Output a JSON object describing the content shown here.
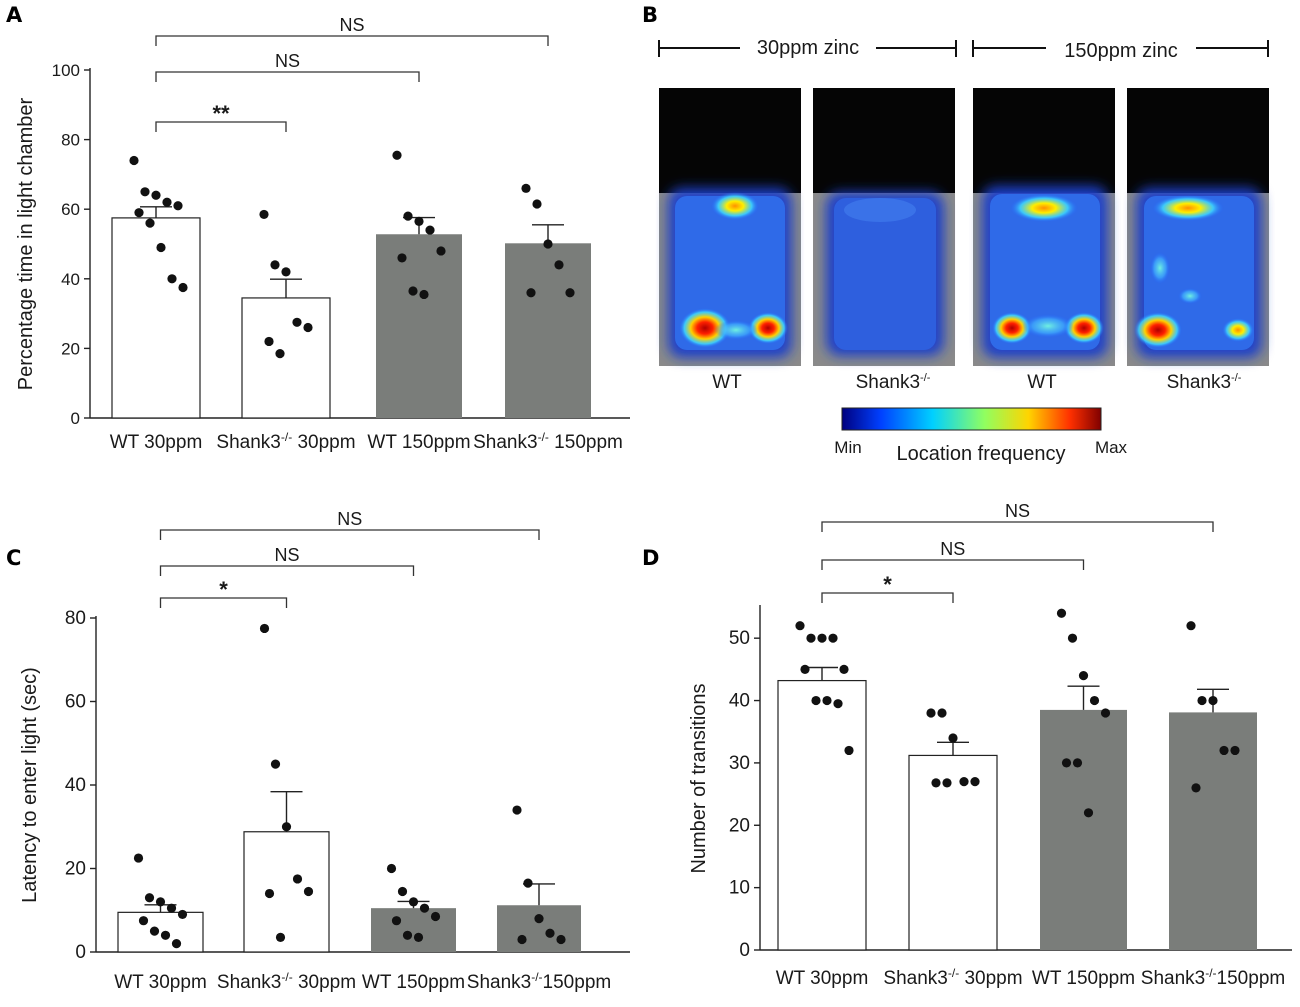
{
  "panel_letters": {
    "a": "A",
    "b": "B",
    "c": "C",
    "d": "D"
  },
  "colors": {
    "wt_fill": "#ffffff",
    "treat_fill": "#7a7d7a",
    "stroke": "#222222",
    "dot": "#111111"
  },
  "chart_data": [
    {
      "id": "A",
      "type": "bar",
      "ylabel": "Percentage time in light chamber",
      "ylim": [
        0,
        100
      ],
      "yticks": [
        0,
        20,
        40,
        60,
        80,
        100
      ],
      "categories": [
        {
          "pre": "WT 30ppm",
          "sup": "",
          "post": ""
        },
        {
          "pre": "Shank3",
          "sup": "-/-",
          "post": " 30ppm"
        },
        {
          "pre": "WT 150ppm",
          "sup": "",
          "post": ""
        },
        {
          "pre": "Shank3",
          "sup": "-/-",
          "post": " 150ppm"
        }
      ],
      "fills": [
        "white",
        "white",
        "gray",
        "gray"
      ],
      "means": [
        57.5,
        34.5,
        52.8,
        50.2
      ],
      "sem": [
        3.2,
        5.4,
        4.8,
        5.3
      ],
      "points": [
        [
          74,
          65,
          64,
          62,
          61,
          59,
          56,
          49,
          40,
          37.5
        ],
        [
          58.5,
          44,
          42,
          27.5,
          26,
          22,
          18.5
        ],
        [
          75.5,
          58,
          56.5,
          54,
          48,
          46,
          36.5,
          35.5
        ],
        [
          66,
          61.5,
          50,
          44,
          36,
          36
        ]
      ],
      "comparisons": [
        {
          "from": 0,
          "to": 3,
          "label": "NS"
        },
        {
          "from": 0,
          "to": 2,
          "label": "NS"
        },
        {
          "from": 0,
          "to": 1,
          "label": "**"
        }
      ]
    },
    {
      "id": "C",
      "type": "bar",
      "ylabel": "Latency to enter light (sec)",
      "ylim": [
        0,
        80
      ],
      "yticks": [
        0,
        20,
        40,
        60,
        80
      ],
      "categories": [
        {
          "pre": "WT 30ppm",
          "sup": "",
          "post": ""
        },
        {
          "pre": "Shank3",
          "sup": "-/-",
          "post": " 30ppm"
        },
        {
          "pre": "WT 150ppm",
          "sup": "",
          "post": ""
        },
        {
          "pre": "Shank3",
          "sup": "-/-",
          "post": "150ppm"
        }
      ],
      "fills": [
        "white",
        "white",
        "gray",
        "gray"
      ],
      "means": [
        9.5,
        28.8,
        10.5,
        11.2
      ],
      "sem": [
        1.8,
        9.6,
        1.6,
        5.1
      ],
      "points": [
        [
          22.5,
          13,
          12,
          10.5,
          9,
          7.5,
          5,
          4,
          2
        ],
        [
          77.5,
          45,
          30,
          17.5,
          14.5,
          14,
          3.5
        ],
        [
          20,
          14.5,
          12,
          10.5,
          8.5,
          7.5,
          4,
          3.5
        ],
        [
          34,
          16.5,
          8,
          4.5,
          3,
          3
        ]
      ],
      "comparisons": [
        {
          "from": 0,
          "to": 3,
          "label": "NS"
        },
        {
          "from": 0,
          "to": 2,
          "label": "NS"
        },
        {
          "from": 0,
          "to": 1,
          "label": "*"
        }
      ]
    },
    {
      "id": "D",
      "type": "bar",
      "ylabel": "Number of transitions",
      "ylim": [
        0,
        55
      ],
      "yticks": [
        0,
        10,
        20,
        30,
        40,
        50
      ],
      "categories": [
        {
          "pre": "WT 30ppm",
          "sup": "",
          "post": ""
        },
        {
          "pre": "Shank3",
          "sup": "-/-",
          "post": " 30ppm"
        },
        {
          "pre": "WT 150ppm",
          "sup": "",
          "post": ""
        },
        {
          "pre": "Shank3",
          "sup": "-/-",
          "post": "150ppm"
        }
      ],
      "fills": [
        "white",
        "white",
        "gray",
        "gray"
      ],
      "means": [
        43.2,
        31.2,
        38.5,
        38.1
      ],
      "sem": [
        2.1,
        2.1,
        3.8,
        3.7
      ],
      "points": [
        [
          52,
          50,
          50,
          50,
          45,
          45,
          40,
          40,
          39.5,
          32
        ],
        [
          38,
          38,
          34,
          27,
          27,
          26.8,
          26.8
        ],
        [
          54,
          50,
          44,
          40,
          38,
          30,
          30,
          22
        ],
        [
          52,
          40,
          40,
          32,
          32,
          26
        ]
      ],
      "comparisons": [
        {
          "from": 0,
          "to": 3,
          "label": "NS"
        },
        {
          "from": 0,
          "to": 2,
          "label": "NS"
        },
        {
          "from": 0,
          "to": 1,
          "label": "*"
        }
      ]
    }
  ],
  "panel_b": {
    "groups": [
      "30ppm zinc",
      "150ppm zinc"
    ],
    "labels": [
      {
        "pre": "WT",
        "sup": ""
      },
      {
        "pre": "Shank3",
        "sup": "-/-"
      },
      {
        "pre": "WT",
        "sup": ""
      },
      {
        "pre": "Shank3",
        "sup": "-/-"
      }
    ],
    "colorbar": {
      "min": "Min",
      "max": "Max",
      "title": "Location frequency"
    }
  }
}
